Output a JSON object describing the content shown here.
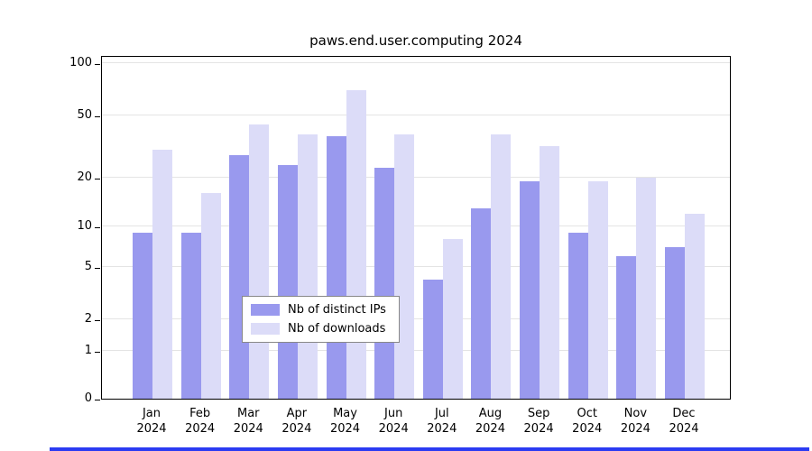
{
  "chart_data": {
    "type": "bar",
    "title": "paws.end.user.computing 2024",
    "categories": [
      "Jan",
      "Feb",
      "Mar",
      "Apr",
      "May",
      "Jun",
      "Jul",
      "Aug",
      "Sep",
      "Oct",
      "Nov",
      "Dec"
    ],
    "x_year": "2024",
    "series": [
      {
        "name": "Nb of distinct IPs",
        "color": "#9999ee",
        "values": [
          9,
          9,
          28,
          24,
          37,
          23,
          4,
          13,
          19,
          9,
          6,
          7
        ]
      },
      {
        "name": "Nb of downloads",
        "color": "#dcdcf8",
        "values": [
          30,
          16,
          44,
          38,
          70,
          38,
          8,
          38,
          32,
          19,
          20,
          12
        ]
      }
    ],
    "xlabel": "",
    "ylabel": "",
    "y_ticks": [
      0,
      1,
      2,
      5,
      10,
      20,
      50,
      100
    ],
    "ylim": [
      0,
      100
    ],
    "y_scale": "log-like",
    "grid": true,
    "legend_position": "inside-bottom-center"
  },
  "colors": {
    "bar_distinct_ips": "#9999ee",
    "bar_downloads": "#dcdcf8",
    "bottom_strip": "#2b3bf2"
  }
}
